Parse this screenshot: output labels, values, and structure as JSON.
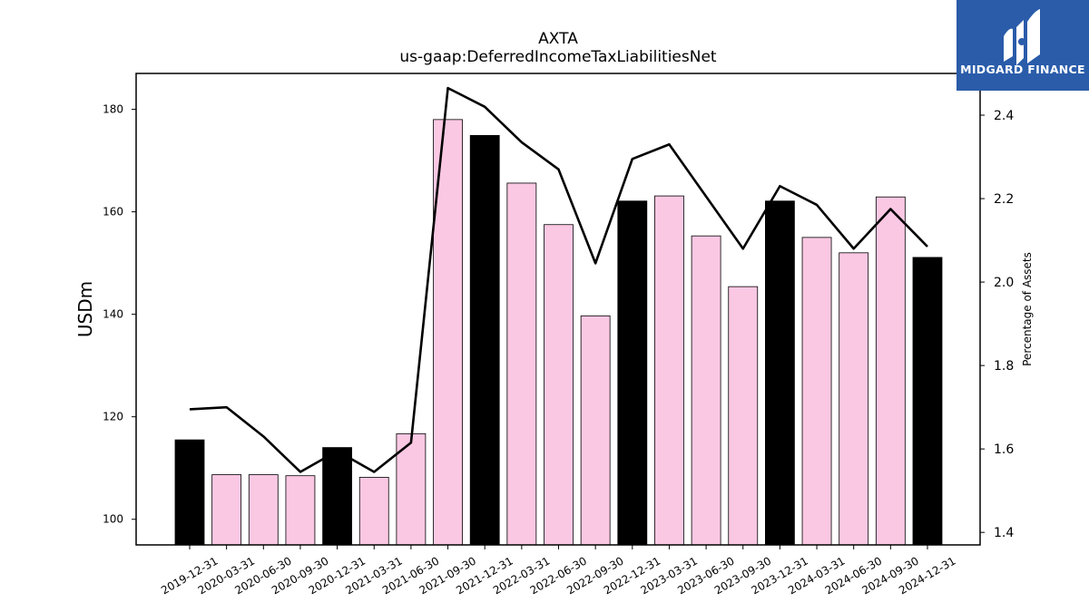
{
  "chart_data": {
    "type": "bar",
    "title": "AXTA",
    "subtitle": "us-gaap:DeferredIncomeTaxLiabilitiesNet",
    "ylabel": "USDm",
    "ylabel_right": "Percentage of Assets",
    "ylim": [
      95,
      187
    ],
    "ylim_right": [
      1.37,
      2.5
    ],
    "yticks": [
      100,
      120,
      140,
      160,
      180
    ],
    "yticks_right": [
      1.4,
      1.6,
      1.8,
      2.0,
      2.2,
      2.4
    ],
    "categories": [
      "2019-12-31",
      "2020-03-31",
      "2020-06-30",
      "2020-09-30",
      "2020-12-31",
      "2021-03-31",
      "2021-06-30",
      "2021-09-30",
      "2021-12-31",
      "2022-03-31",
      "2022-06-30",
      "2022-09-30",
      "2022-12-31",
      "2023-03-31",
      "2023-06-30",
      "2023-09-30",
      "2023-12-31",
      "2024-03-31",
      "2024-06-30",
      "2024-09-30",
      "2024-12-31"
    ],
    "series": [
      {
        "type": "bar",
        "axis": "left",
        "values": [
          115.5,
          108.7,
          108.7,
          108.5,
          114.0,
          108.2,
          116.7,
          178.0,
          174.9,
          165.6,
          157.5,
          139.7,
          162.1,
          163.1,
          155.3,
          145.4,
          162.1,
          155.0,
          152.0,
          162.9,
          151.1
        ],
        "colors": [
          "#000000",
          "#fbc8e3",
          "#fbc8e3",
          "#fbc8e3",
          "#000000",
          "#fbc8e3",
          "#fbc8e3",
          "#fbc8e3",
          "#000000",
          "#fbc8e3",
          "#fbc8e3",
          "#fbc8e3",
          "#000000",
          "#fbc8e3",
          "#fbc8e3",
          "#fbc8e3",
          "#000000",
          "#fbc8e3",
          "#fbc8e3",
          "#fbc8e3",
          "#000000"
        ]
      },
      {
        "type": "line",
        "axis": "right",
        "values": [
          1.695,
          1.7,
          1.63,
          1.545,
          1.595,
          1.545,
          1.615,
          2.465,
          2.42,
          2.335,
          2.27,
          2.045,
          2.295,
          2.33,
          2.205,
          2.08,
          2.23,
          2.185,
          2.08,
          2.175,
          2.085
        ],
        "color": "#000000"
      }
    ],
    "grid": false,
    "legend": "none"
  },
  "branding": {
    "logo_text": "MIDGARD FINANCE",
    "logo_bg": "#2a5caa"
  }
}
